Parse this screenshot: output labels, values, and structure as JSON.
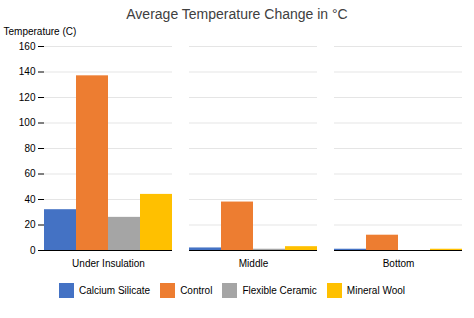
{
  "chart_data": {
    "type": "bar",
    "title": "Average Temperature Change in °C",
    "ylabel": "Temperature (C)",
    "categories": [
      "Under Insulation",
      "Middle",
      "Bottom"
    ],
    "series": [
      {
        "name": "Calcium Silicate",
        "color": "#4472C4",
        "values": [
          32,
          2,
          1
        ]
      },
      {
        "name": "Control",
        "color": "#ED7D31",
        "values": [
          137,
          38,
          12
        ]
      },
      {
        "name": "Flexible Ceramic",
        "color": "#A5A5A5",
        "values": [
          26,
          1,
          0
        ]
      },
      {
        "name": "Mineral Wool",
        "color": "#FFC000",
        "values": [
          44,
          3,
          1
        ]
      }
    ],
    "ylim": [
      0,
      160
    ],
    "yticks": [
      0,
      20,
      40,
      60,
      80,
      100,
      120,
      140,
      160
    ],
    "grid": true,
    "legend": "bottom"
  }
}
